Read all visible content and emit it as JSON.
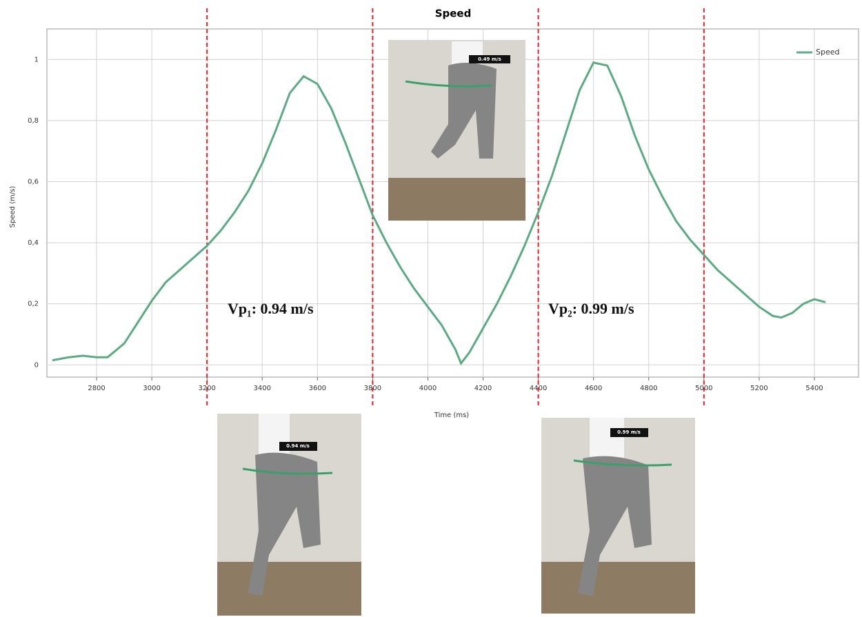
{
  "chart_data": {
    "type": "line",
    "title": "Speed",
    "x_label": "Time (ms)",
    "y_label": "Speed (m/s)",
    "x": [
      2640,
      2700,
      2750,
      2800,
      2840,
      2900,
      2950,
      3000,
      3050,
      3100,
      3150,
      3200,
      3250,
      3300,
      3350,
      3400,
      3450,
      3500,
      3550,
      3600,
      3650,
      3700,
      3750,
      3800,
      3850,
      3900,
      3950,
      4000,
      4050,
      4100,
      4120,
      4150,
      4200,
      4250,
      4300,
      4350,
      4400,
      4450,
      4500,
      4550,
      4600,
      4650,
      4700,
      4750,
      4800,
      4850,
      4900,
      4950,
      5000,
      5050,
      5100,
      5150,
      5200,
      5250,
      5280,
      5320,
      5360,
      5400,
      5440
    ],
    "series": [
      {
        "name": "Speed",
        "color": "#5aab84",
        "values": [
          0.015,
          0.025,
          0.03,
          0.025,
          0.025,
          0.07,
          0.14,
          0.21,
          0.27,
          0.31,
          0.35,
          0.39,
          0.44,
          0.5,
          0.57,
          0.66,
          0.77,
          0.89,
          0.945,
          0.92,
          0.84,
          0.73,
          0.61,
          0.49,
          0.4,
          0.32,
          0.25,
          0.19,
          0.13,
          0.05,
          0.005,
          0.04,
          0.12,
          0.2,
          0.29,
          0.39,
          0.5,
          0.62,
          0.76,
          0.9,
          0.99,
          0.98,
          0.88,
          0.75,
          0.64,
          0.55,
          0.47,
          0.41,
          0.36,
          0.31,
          0.27,
          0.23,
          0.19,
          0.16,
          0.155,
          0.17,
          0.2,
          0.215,
          0.205
        ]
      }
    ],
    "xlim": [
      2620,
      5560
    ],
    "ylim": [
      -0.04,
      1.1
    ],
    "xticks": [
      2800,
      3000,
      3200,
      3400,
      3600,
      3800,
      4000,
      4200,
      4400,
      4600,
      4800,
      5000,
      5200,
      5400
    ],
    "yticks": [
      0,
      {
        "value": 0.2,
        "label": "0,2"
      },
      {
        "value": 0.4,
        "label": "0,4"
      },
      {
        "value": 0.6,
        "label": "0,6"
      },
      {
        "value": 0.8,
        "label": "0,8"
      },
      1
    ],
    "grid": true,
    "legend": "upper right",
    "vlines": [
      3200,
      3800,
      4400,
      5000
    ],
    "vline_color": "#e8202a",
    "annotations": [
      "Vp₁: 0.94 m/s",
      "Vp₂: 0.99 m/s"
    ],
    "photo_labels": [
      "0.49 m/s",
      "0.94 m/s",
      "0.99 m/s"
    ]
  }
}
